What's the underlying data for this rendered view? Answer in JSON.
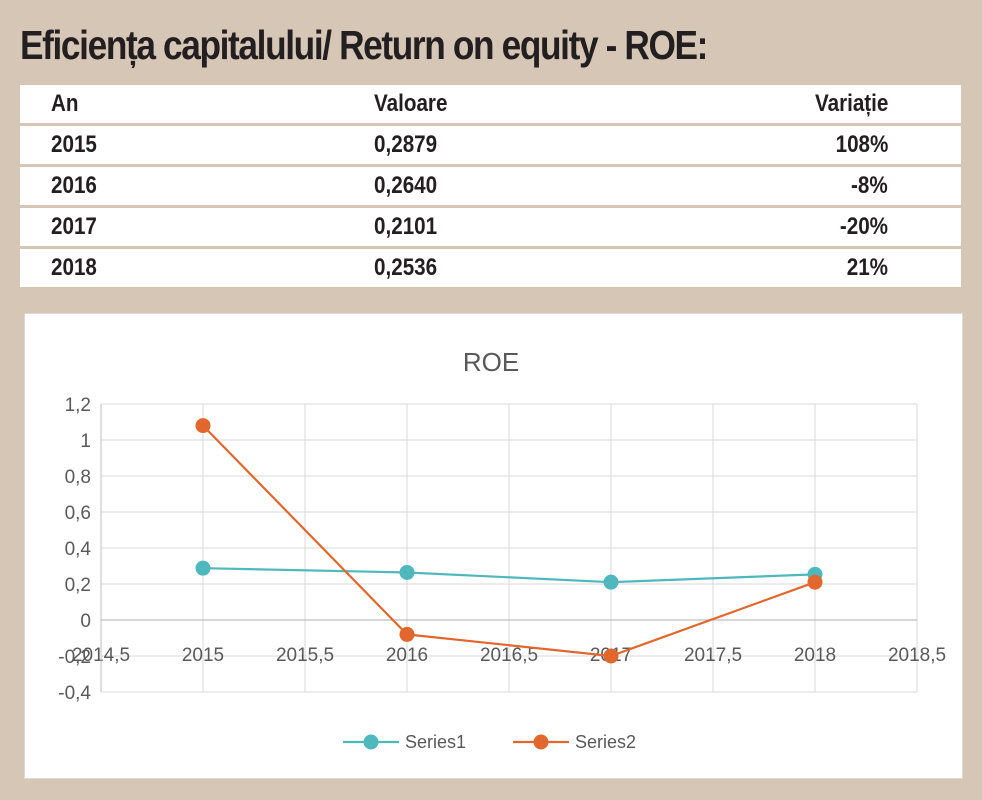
{
  "header": {
    "title": "Eficiența capitalului/ Return on equity - ROE:"
  },
  "table": {
    "columns": [
      "An",
      "Valoare",
      "Variație"
    ],
    "rows": [
      [
        "2015",
        "0,2879",
        "108%"
      ],
      [
        "2016",
        "0,2640",
        "-8%"
      ],
      [
        "2017",
        "0,2101",
        "-20%"
      ],
      [
        "2018",
        "0,2536",
        "21%"
      ]
    ]
  },
  "chart_data": {
    "type": "line",
    "title": "ROE",
    "xlabel": "",
    "ylabel": "",
    "xlim": [
      2014.5,
      2018.5
    ],
    "ylim": [
      -0.4,
      1.2
    ],
    "x_ticks": [
      "2014,5",
      "2015",
      "2015,5",
      "2016",
      "2016,5",
      "2017",
      "2017,5",
      "2018",
      "2018,5"
    ],
    "y_ticks": [
      "1,2",
      "1",
      "0,8",
      "0,6",
      "0,4",
      "0,2",
      "0",
      "-0,2",
      "-0,4"
    ],
    "grid": true,
    "legend": "bottom",
    "x": [
      2015,
      2016,
      2017,
      2018
    ],
    "series": [
      {
        "name": "Series1",
        "values": [
          0.2879,
          0.264,
          0.2101,
          0.2536
        ],
        "color": "#4fb8bd"
      },
      {
        "name": "Series2",
        "values": [
          1.08,
          -0.08,
          -0.2,
          0.21
        ],
        "color": "#e2672c"
      }
    ]
  }
}
